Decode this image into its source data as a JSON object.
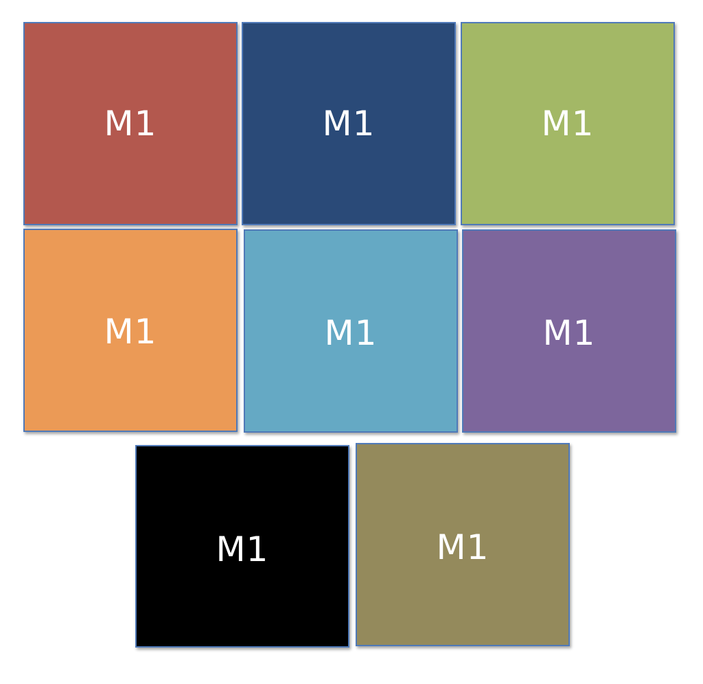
{
  "tiles": [
    {
      "label": "M1",
      "color": "#b3584e"
    },
    {
      "label": "M1",
      "color": "#2a4a78"
    },
    {
      "label": "M1",
      "color": "#a3b866"
    },
    {
      "label": "M1",
      "color": "#eb9a56"
    },
    {
      "label": "M1",
      "color": "#65a9c4"
    },
    {
      "label": "M1",
      "color": "#7d669c"
    },
    {
      "label": "M1",
      "color": "#000000"
    },
    {
      "label": "M1",
      "color": "#948a5c"
    }
  ],
  "colors": {
    "border": "#4f79b8",
    "text": "#ffffff",
    "background": "#ffffff"
  }
}
